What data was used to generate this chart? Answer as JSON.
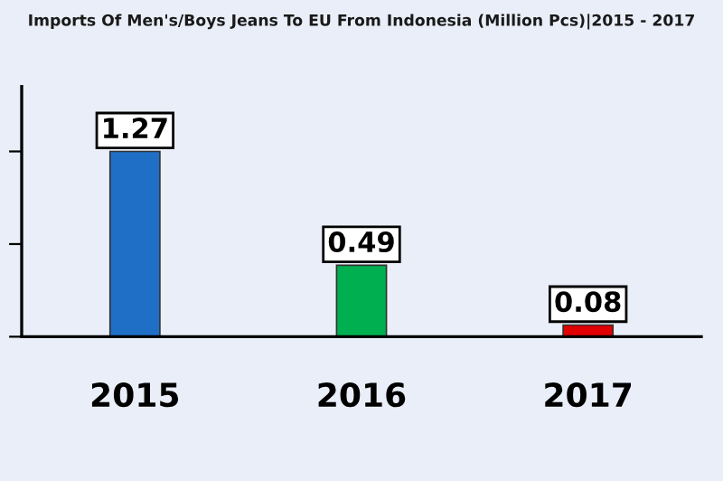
{
  "chart_data": {
    "type": "bar",
    "title": "Imports Of Men's/Boys Jeans To EU From Indonesia (Million Pcs)|2015 - 2017",
    "categories": [
      "2015",
      "2016",
      "2017"
    ],
    "values": [
      1.27,
      0.49,
      0.08
    ],
    "colors": [
      "#1f6fc6",
      "#00b050",
      "#e00000"
    ],
    "data_labels": true,
    "tick_labels": "x",
    "grid": false,
    "legend": false
  }
}
